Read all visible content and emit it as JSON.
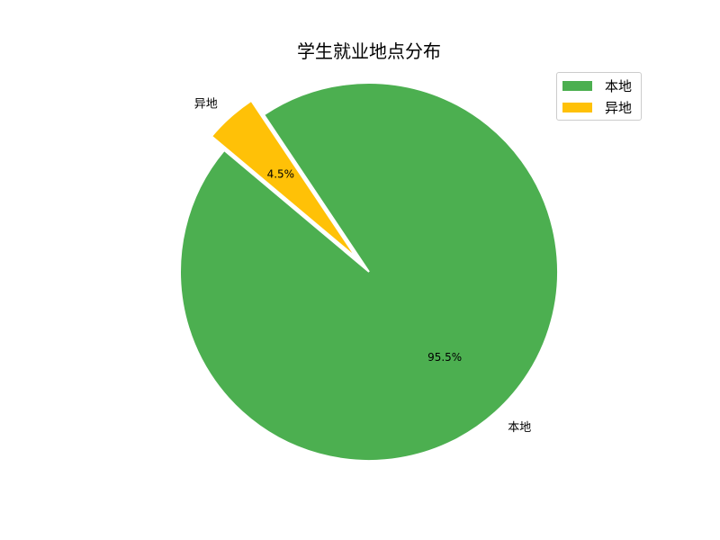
{
  "chart_data": {
    "type": "pie",
    "title": "学生就业地点分布",
    "labels": [
      "本地",
      "异地"
    ],
    "values": [
      95.5,
      4.5
    ],
    "percent_labels": [
      "95.5%",
      "4.5%"
    ],
    "colors": [
      "#4CAF50",
      "#FFC107"
    ],
    "explode": [
      0,
      0.1
    ],
    "start_angle": 140,
    "legend_position": "top-right",
    "legend": [
      "本地",
      "异地"
    ]
  }
}
